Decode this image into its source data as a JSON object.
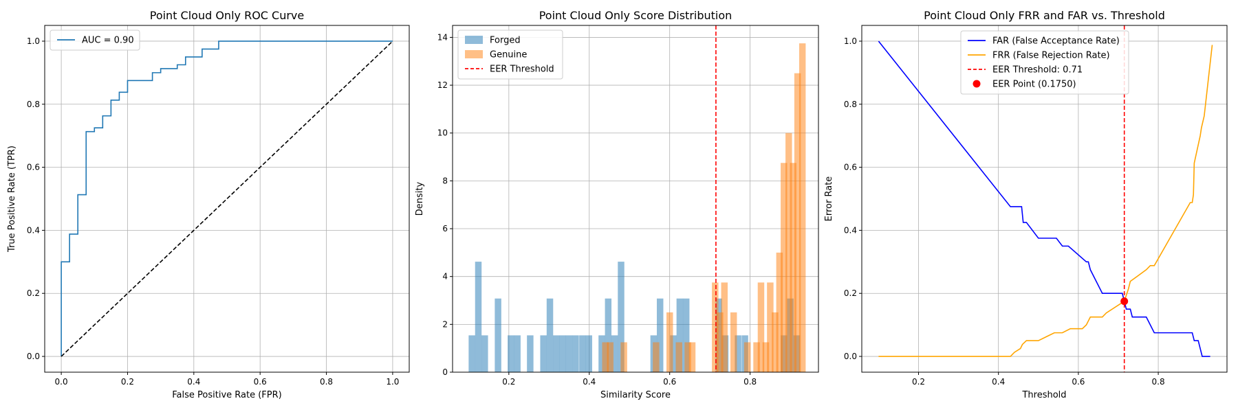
{
  "figure": {
    "colors": {
      "roc": "#1f77b4",
      "diagonal": "#000000",
      "forged": "#1f77b4",
      "genuine": "#ff7f0e",
      "eer": "#ff0000",
      "far": "#0000ff",
      "frr": "#ffa500",
      "grid": "#b0b0b0"
    }
  },
  "chart_data": [
    {
      "type": "line",
      "title": "Point Cloud Only ROC Curve",
      "xlabel": "False Positive Rate (FPR)",
      "ylabel": "True Positive Rate (TPR)",
      "xlim": [
        -0.05,
        1.05
      ],
      "ylim": [
        -0.05,
        1.05
      ],
      "xticks": [
        0.0,
        0.2,
        0.4,
        0.6,
        0.8,
        1.0
      ],
      "yticks": [
        0.0,
        0.2,
        0.4,
        0.6,
        0.8,
        1.0
      ],
      "xtick_labels": [
        "0.0",
        "0.2",
        "0.4",
        "0.6",
        "0.8",
        "1.0"
      ],
      "ytick_labels": [
        "0.0",
        "0.2",
        "0.4",
        "0.6",
        "0.8",
        "1.0"
      ],
      "grid": true,
      "legend_position": "upper-left",
      "series": [
        {
          "name": "AUC = 0.90",
          "color": "#1f77b4",
          "style": "solid",
          "x": [
            0,
            0,
            0.025,
            0.025,
            0.05,
            0.05,
            0.075,
            0.075,
            0.1,
            0.1,
            0.125,
            0.125,
            0.15,
            0.15,
            0.175,
            0.175,
            0.2,
            0.2,
            0.275,
            0.275,
            0.3,
            0.3,
            0.35,
            0.35,
            0.375,
            0.375,
            0.425,
            0.425,
            0.475,
            0.475,
            1.0
          ],
          "y": [
            0,
            0.3,
            0.3,
            0.388,
            0.388,
            0.513,
            0.513,
            0.713,
            0.713,
            0.725,
            0.725,
            0.763,
            0.763,
            0.813,
            0.813,
            0.838,
            0.838,
            0.875,
            0.875,
            0.9,
            0.9,
            0.913,
            0.913,
            0.925,
            0.925,
            0.95,
            0.95,
            0.975,
            0.975,
            1.0,
            1.0
          ]
        },
        {
          "name": "",
          "color": "#000000",
          "style": "dashed",
          "x": [
            0,
            1
          ],
          "y": [
            0,
            1
          ]
        }
      ]
    },
    {
      "type": "bar",
      "title": "Point Cloud Only Score Distribution",
      "xlabel": "Similarity Score",
      "ylabel": "Density",
      "xlim": [
        0.06,
        0.97
      ],
      "ylim": [
        0,
        14.5
      ],
      "xticks": [
        0.2,
        0.4,
        0.6,
        0.8
      ],
      "yticks": [
        0,
        2,
        4,
        6,
        8,
        10,
        12,
        14
      ],
      "xtick_labels": [
        "0.2",
        "0.4",
        "0.6",
        "0.8"
      ],
      "ytick_labels": [
        "0",
        "2",
        "4",
        "6",
        "8",
        "10",
        "12",
        "14"
      ],
      "grid": true,
      "legend_position": "upper-left",
      "bin_width": 0.0162,
      "series": [
        {
          "name": "Forged",
          "color": "#1f77b4",
          "opacity": 0.5,
          "bins_start": [
            0.1,
            0.116,
            0.132,
            0.165,
            0.197,
            0.213,
            0.245,
            0.278,
            0.294,
            0.31,
            0.326,
            0.342,
            0.358,
            0.375,
            0.391,
            0.423,
            0.439,
            0.455,
            0.471,
            0.552,
            0.568,
            0.601,
            0.617,
            0.633,
            0.714,
            0.73,
            0.762,
            0.779,
            0.876,
            0.892,
            0.908
          ],
          "values": [
            1.54,
            4.62,
            1.54,
            3.08,
            1.54,
            1.54,
            1.54,
            1.54,
            3.08,
            1.54,
            1.54,
            1.54,
            1.54,
            1.54,
            1.54,
            1.54,
            3.08,
            1.54,
            4.62,
            1.54,
            3.08,
            1.54,
            3.08,
            3.08,
            3.08,
            1.54,
            1.54,
            1.54,
            1.54,
            3.08,
            1.54
          ]
        },
        {
          "name": "Genuine",
          "color": "#ff7f0e",
          "opacity": 0.5,
          "bins_start": [
            0.432,
            0.444,
            0.478,
            0.558,
            0.592,
            0.615,
            0.637,
            0.648,
            0.705,
            0.717,
            0.728,
            0.751,
            0.785,
            0.808,
            0.819,
            0.831,
            0.842,
            0.854,
            0.865,
            0.876,
            0.888,
            0.899,
            0.91,
            0.922
          ],
          "values": [
            1.25,
            1.25,
            1.25,
            1.25,
            2.5,
            1.25,
            1.25,
            1.25,
            3.75,
            2.5,
            3.75,
            2.5,
            1.25,
            1.25,
            3.75,
            1.25,
            3.75,
            2.5,
            5.0,
            8.75,
            10.0,
            8.75,
            12.5,
            13.75
          ]
        }
      ],
      "reference_lines": [
        {
          "name": "EER Threshold",
          "x": 0.715,
          "color": "#ff0000",
          "style": "dashed"
        }
      ]
    },
    {
      "type": "line",
      "title": "Point Cloud Only FRR and FAR vs. Threshold",
      "xlabel": "Threshold",
      "ylabel": "Error Rate",
      "xlim": [
        0.058,
        0.972
      ],
      "ylim": [
        -0.05,
        1.05
      ],
      "xticks": [
        0.2,
        0.4,
        0.6,
        0.8
      ],
      "yticks": [
        0.0,
        0.2,
        0.4,
        0.6,
        0.8,
        1.0
      ],
      "xtick_labels": [
        "0.2",
        "0.4",
        "0.6",
        "0.8"
      ],
      "ytick_labels": [
        "0.0",
        "0.2",
        "0.4",
        "0.6",
        "0.8",
        "1.0"
      ],
      "grid": true,
      "legend_position": "upper-center",
      "series": [
        {
          "name": "FAR (False Acceptance Rate)",
          "color": "#0000ff",
          "style": "solid",
          "x": [
            0.1,
            0.43,
            0.434,
            0.458,
            0.462,
            0.47,
            0.5,
            0.545,
            0.56,
            0.565,
            0.575,
            0.62,
            0.625,
            0.63,
            0.66,
            0.7,
            0.71,
            0.715,
            0.72,
            0.73,
            0.735,
            0.77,
            0.78,
            0.79,
            0.885,
            0.89,
            0.9,
            0.905,
            0.91,
            0.93
          ],
          "y": [
            1.0,
            0.475,
            0.475,
            0.475,
            0.425,
            0.425,
            0.375,
            0.375,
            0.35,
            0.35,
            0.35,
            0.3,
            0.3,
            0.275,
            0.2,
            0.2,
            0.2,
            0.175,
            0.15,
            0.15,
            0.125,
            0.125,
            0.1,
            0.075,
            0.075,
            0.05,
            0.05,
            0.025,
            0.0,
            0.0
          ]
        },
        {
          "name": "FRR (False Rejection Rate)",
          "color": "#ffa500",
          "style": "solid",
          "x": [
            0.1,
            0.43,
            0.44,
            0.455,
            0.46,
            0.47,
            0.5,
            0.54,
            0.56,
            0.58,
            0.61,
            0.62,
            0.63,
            0.66,
            0.67,
            0.715,
            0.725,
            0.73,
            0.77,
            0.78,
            0.79,
            0.88,
            0.885,
            0.888,
            0.89,
            0.905,
            0.908,
            0.915,
            0.935
          ],
          "y": [
            0.0,
            0.0,
            0.013,
            0.025,
            0.038,
            0.05,
            0.05,
            0.075,
            0.075,
            0.088,
            0.088,
            0.1,
            0.125,
            0.125,
            0.138,
            0.175,
            0.213,
            0.238,
            0.275,
            0.288,
            0.288,
            0.488,
            0.488,
            0.513,
            0.613,
            0.7,
            0.725,
            0.763,
            0.988
          ]
        }
      ],
      "reference_lines": [
        {
          "name": "EER Threshold: 0.71",
          "x": 0.715,
          "color": "#ff0000",
          "style": "dashed"
        }
      ],
      "points": [
        {
          "name": "EER Point (0.1750)",
          "x": 0.715,
          "y": 0.175,
          "color": "#ff0000"
        }
      ]
    }
  ]
}
